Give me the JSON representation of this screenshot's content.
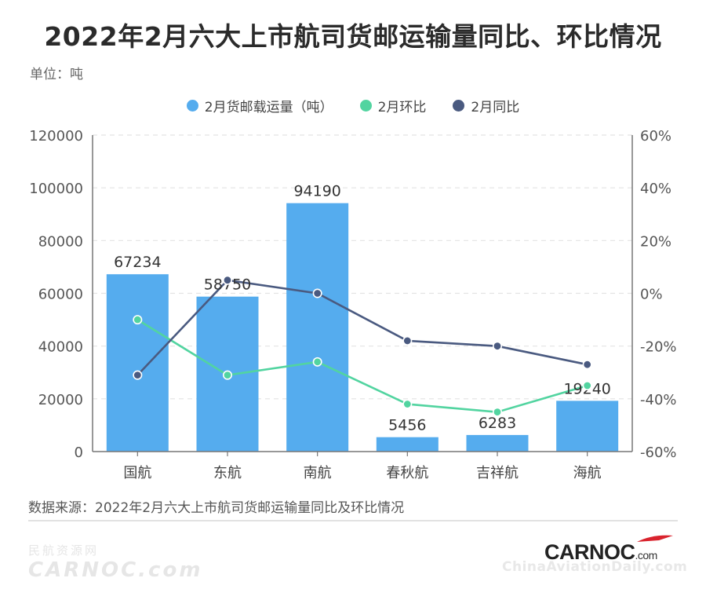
{
  "title": "2022年2月六大上市航司货邮运输量同比、环比情况",
  "unit": "单位：吨",
  "source": "数据来源：2022年2月六大上市航司货邮运输量同比及环比情况",
  "watermark_left": {
    "cn": "民航资源网",
    "en": "CARNOC.com"
  },
  "logo": {
    "main": "CARNOC",
    "suffix": ".com"
  },
  "watermark_right": "ChinaAviationDaily.com",
  "colors": {
    "bar": "#55acee",
    "mom": "#52d4a0",
    "yoy": "#4a5a80",
    "grid": "#e4e4e4",
    "axis": "#777777"
  },
  "chart_data": {
    "type": "bar+line",
    "categories": [
      "国航",
      "东航",
      "南航",
      "春秋航",
      "吉祥航",
      "海航"
    ],
    "left_axis": {
      "min": 0,
      "max": 120000,
      "ticks": [
        "0",
        "20000",
        "40000",
        "60000",
        "80000",
        "100000",
        "120000"
      ]
    },
    "right_axis": {
      "min": -60,
      "max": 60,
      "ticks": [
        "-60%",
        "-40%",
        "-20%",
        "0%",
        "20%",
        "40%",
        "60%"
      ]
    },
    "grid": true,
    "legend_position": "top",
    "series": [
      {
        "name": "2月货邮载运量（吨）",
        "type": "bar",
        "axis": "left",
        "values": [
          67234,
          58750,
          94190,
          5456,
          6283,
          19240
        ],
        "labels": [
          "67234",
          "58750",
          "94190",
          "5456",
          "6283",
          "19240"
        ]
      },
      {
        "name": "2月环比",
        "type": "line",
        "axis": "right",
        "values": [
          -10,
          -31,
          -26,
          -42,
          -45,
          -35
        ]
      },
      {
        "name": "2月同比",
        "type": "line",
        "axis": "right",
        "values": [
          -31,
          5,
          0,
          -18,
          -20,
          -27
        ]
      }
    ]
  }
}
